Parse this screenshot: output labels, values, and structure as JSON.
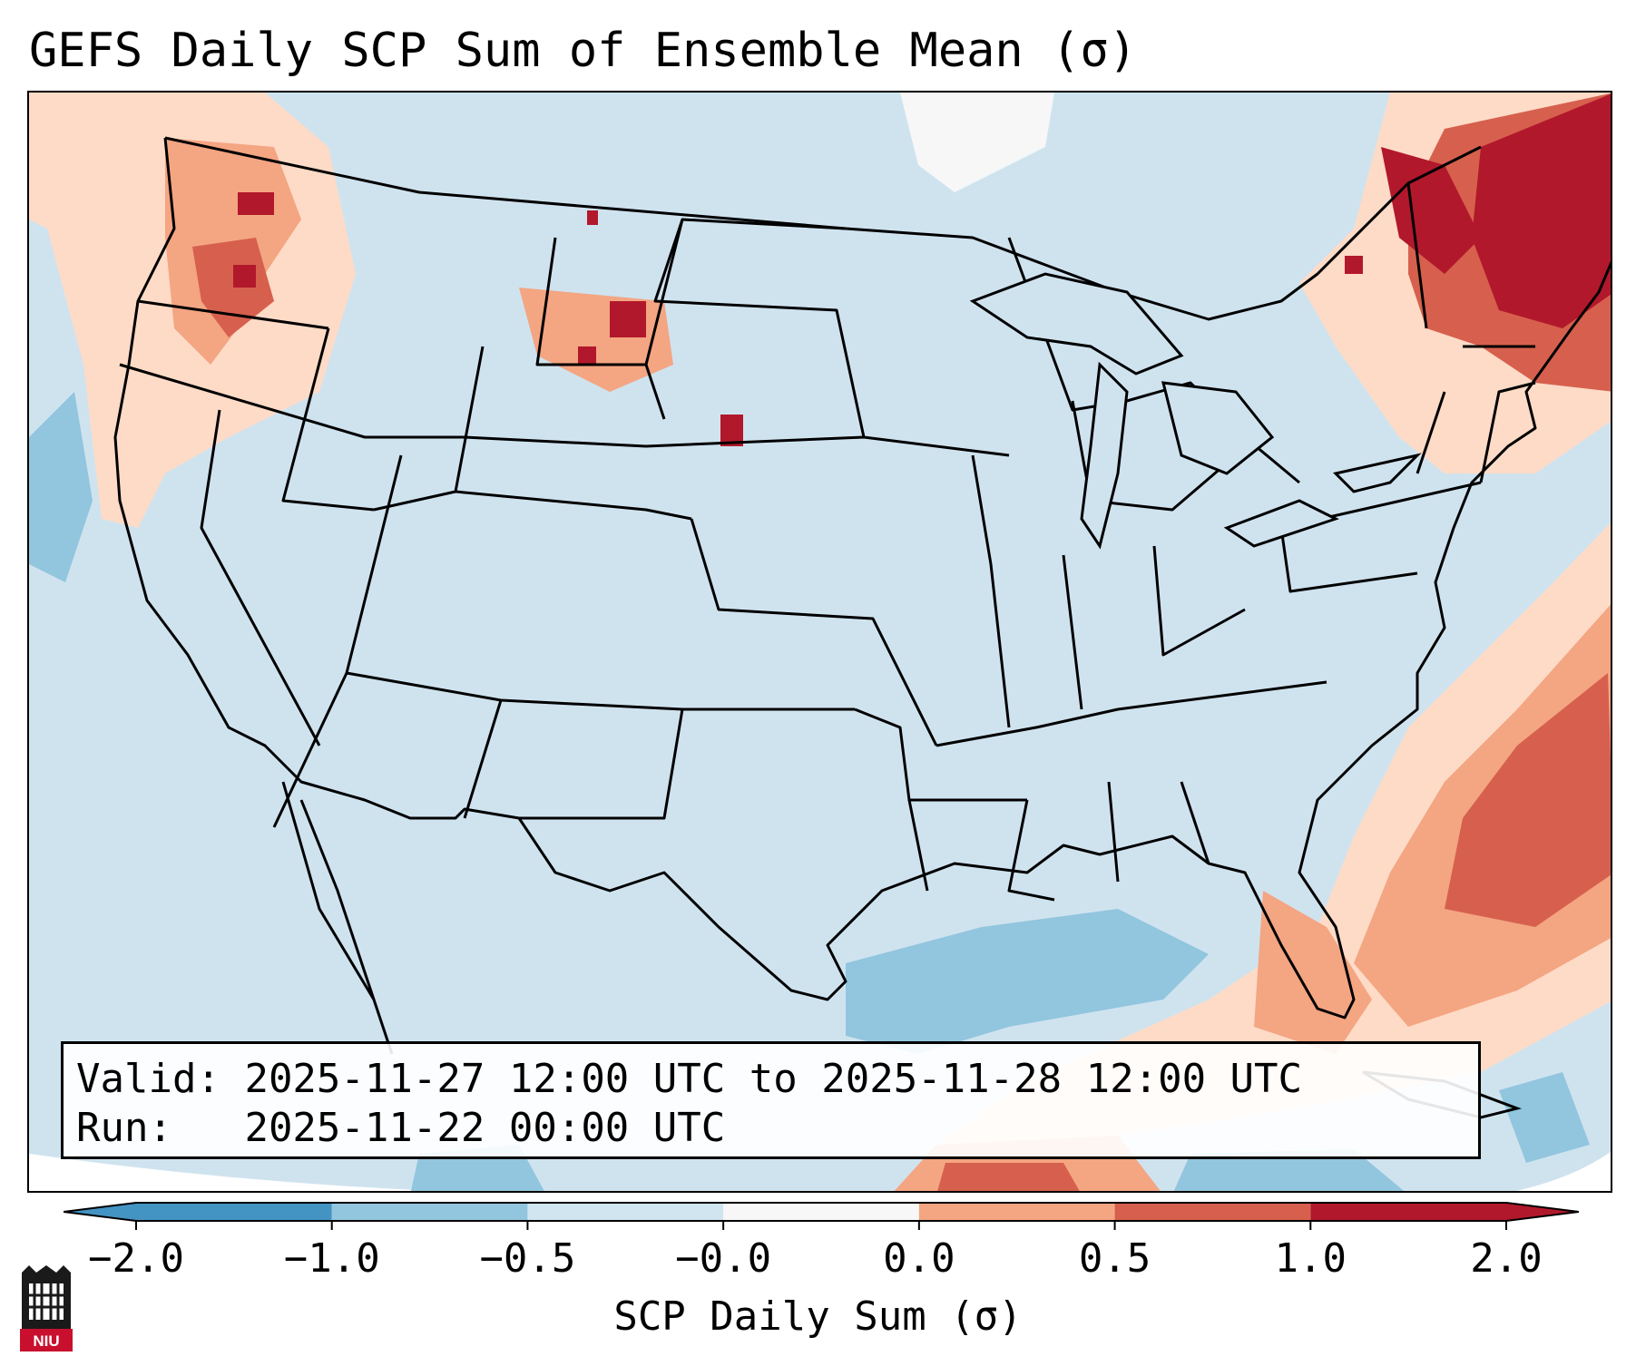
{
  "title": "GEFS Daily SCP Sum of Ensemble Mean (σ)",
  "map": {
    "region": "Continental United States",
    "variable": "SCP Daily Sum",
    "unit": "σ",
    "ocean_land_color": "#cfe3ef",
    "border_color": "#000000"
  },
  "info_box": {
    "valid_label": "Valid:",
    "valid_text": "2025-11-27 12:00 UTC to 2025-11-28 12:00 UTC",
    "run_label": "Run:",
    "run_text": "2025-11-22 00:00 UTC"
  },
  "colorbar": {
    "label": "SCP Daily Sum (σ)",
    "ticks": [
      "−2.0",
      "−1.0",
      "−0.5",
      "−0.0",
      "0.0",
      "0.5",
      "1.0",
      "2.0"
    ],
    "colors": [
      "#4393c3",
      "#92c5de",
      "#d1e5f0",
      "#f7f7f7",
      "#fddbc7",
      "#f4a582",
      "#d6604d",
      "#b2182b"
    ],
    "extend": "both"
  },
  "logo": {
    "text": "NIU",
    "color": "#c8102e"
  }
}
